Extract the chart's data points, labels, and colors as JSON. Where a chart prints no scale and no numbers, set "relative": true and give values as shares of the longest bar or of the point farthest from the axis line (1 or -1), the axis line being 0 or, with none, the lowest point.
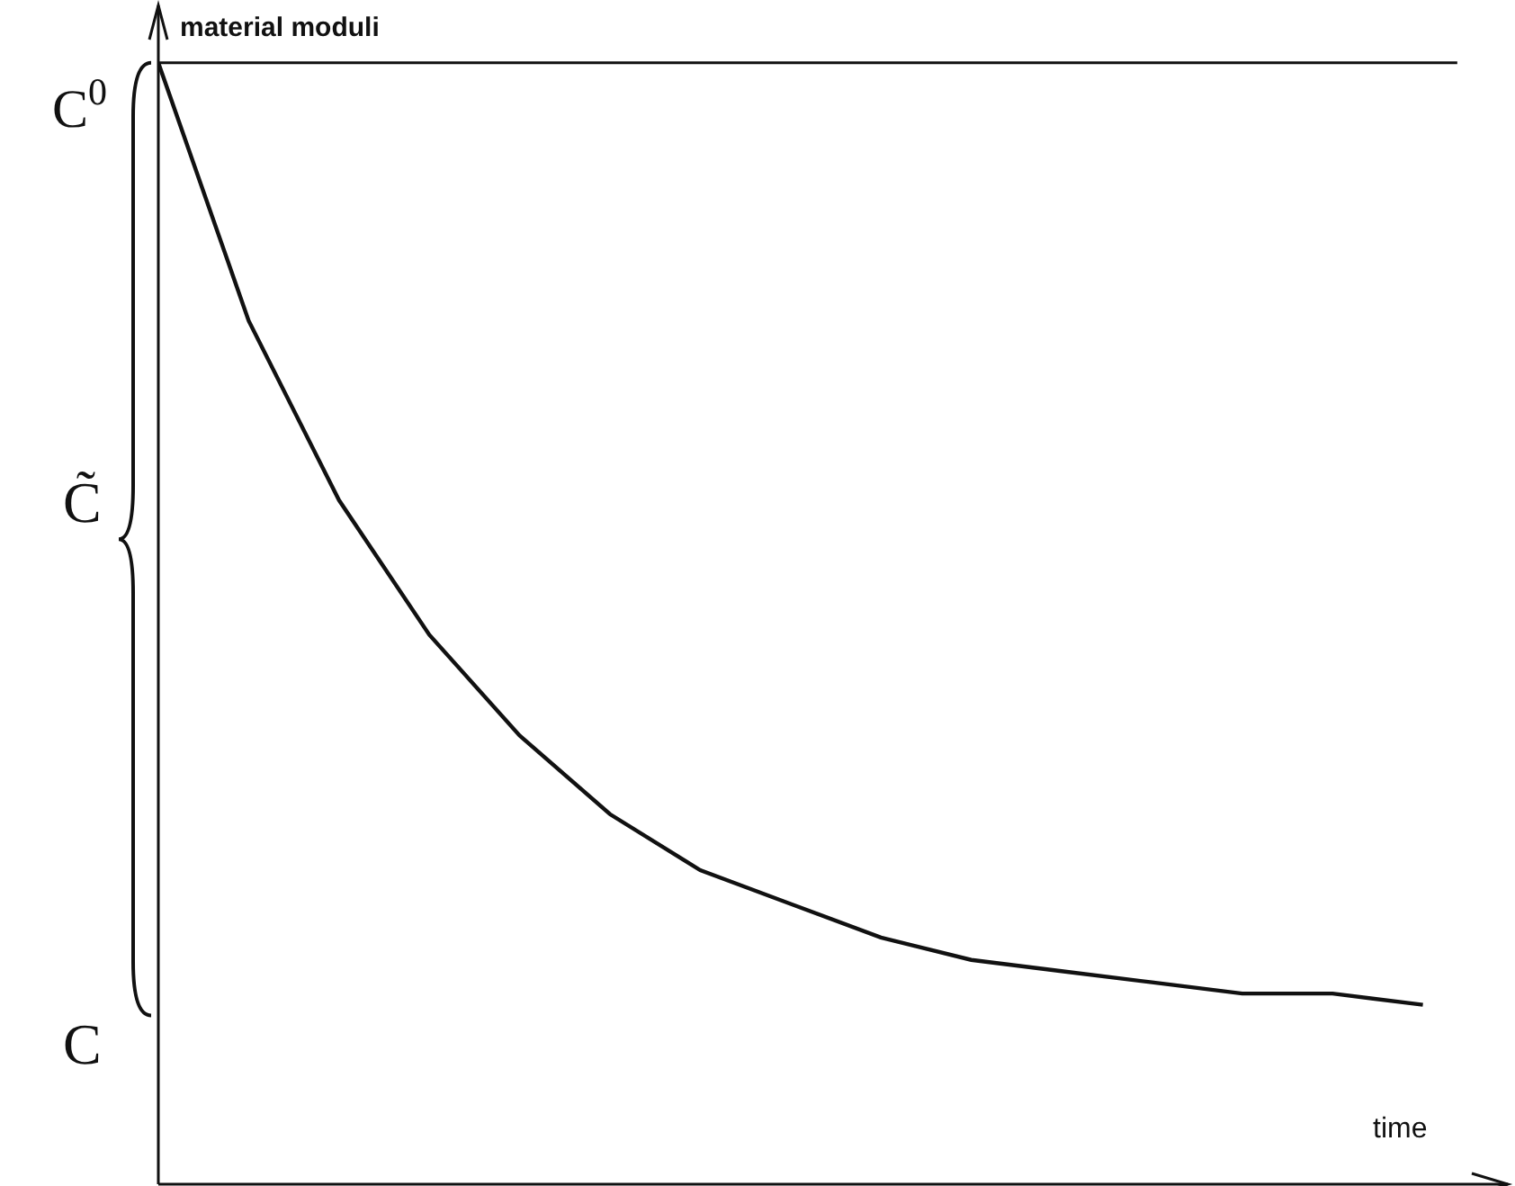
{
  "chart_data": {
    "type": "line",
    "relative": true,
    "xlabel": "time",
    "ylabel": "material moduli",
    "categories": [
      null,
      null,
      null,
      null,
      null,
      null,
      null,
      null,
      null,
      null,
      null,
      null,
      null,
      null,
      null
    ],
    "series": [
      {
        "color": "#111111",
        "values": [
          1.0,
          0.77,
          0.61,
          0.49,
          0.4,
          0.33,
          0.28,
          0.25,
          0.22,
          0.2,
          0.19,
          0.18,
          0.17,
          0.17,
          0.16
        ]
      }
    ],
    "ref_lines": [
      {
        "axis": "y",
        "value": 1,
        "label": "C$^{0}$",
        "color": "#111111"
      }
    ],
    "annotations": [
      "C̃",
      "C"
    ],
    "marker": "none",
    "line_style": "solid",
    "grid": false
  }
}
